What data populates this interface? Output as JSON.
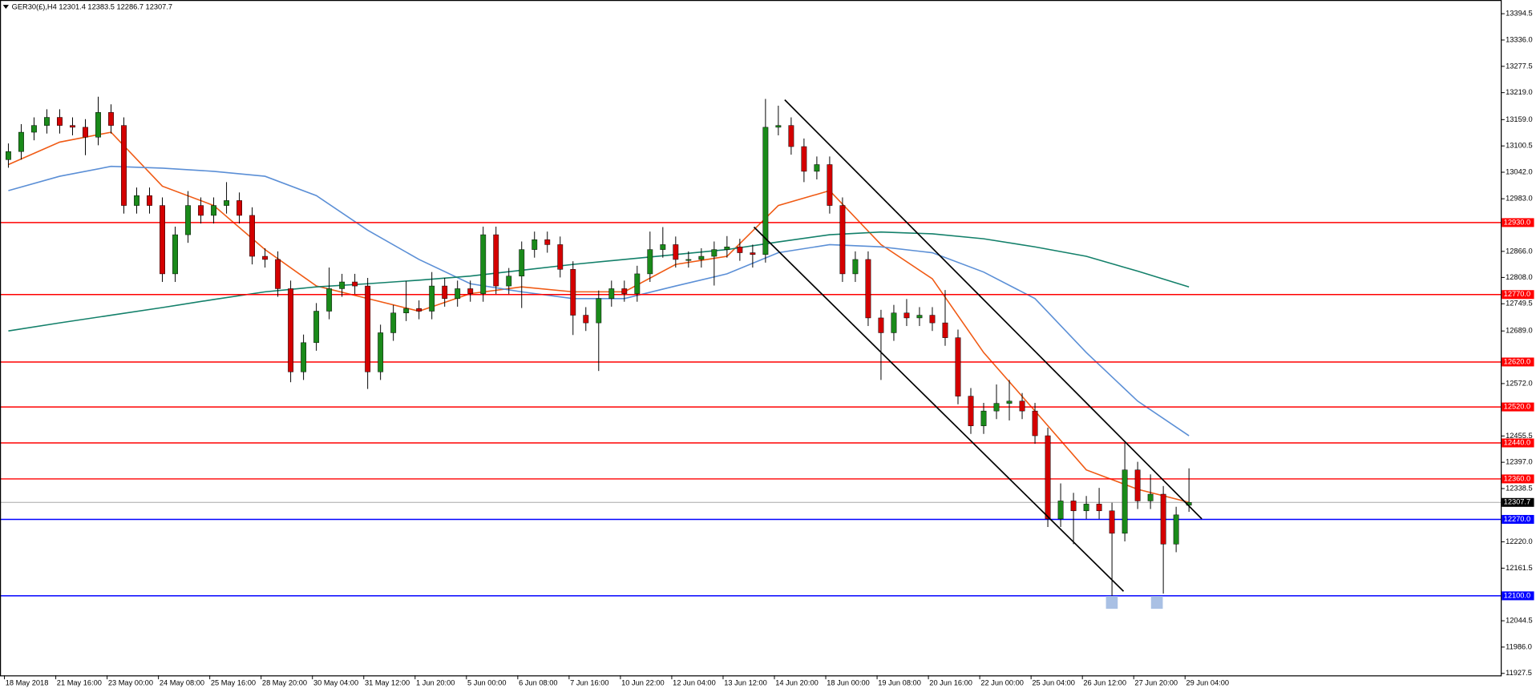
{
  "chart_data": {
    "type": "candlestick",
    "title": "GER30(£),H4  12301.4 12383.5 12286.7 12307.7",
    "categories": [
      "18 May 2018",
      null,
      null,
      null,
      "21 May 16:00",
      null,
      null,
      null,
      "23 May 00:00",
      null,
      null,
      null,
      "24 May 08:00",
      null,
      null,
      null,
      "25 May 16:00",
      null,
      null,
      null,
      "28 May 20:00",
      null,
      null,
      null,
      "30 May 04:00",
      null,
      null,
      null,
      "31 May 12:00",
      null,
      null,
      null,
      "1 Jun 20:00",
      null,
      null,
      null,
      "5 Jun 00:00",
      null,
      null,
      null,
      "6 Jun 08:00",
      null,
      null,
      null,
      "7 Jun 16:00",
      null,
      null,
      null,
      "10 Jun 22:00",
      null,
      null,
      null,
      "12 Jun 04:00",
      null,
      null,
      null,
      "13 Jun 12:00",
      null,
      null,
      null,
      "14 Jun 20:00",
      null,
      null,
      null,
      "18 Jun 00:00",
      null,
      null,
      null,
      "19 Jun 08:00",
      null,
      null,
      null,
      "20 Jun 16:00",
      null,
      null,
      null,
      "22 Jun 00:00",
      null,
      null,
      null,
      "25 Jun 04:00",
      null,
      null,
      null,
      "26 Jun 12:00",
      null,
      null,
      null,
      "27 Jun 20:00",
      null,
      null,
      null,
      "29 Jun 04:00"
    ],
    "open": [
      13070,
      13088,
      13131,
      13146,
      13164,
      13146,
      13142,
      13120,
      13175,
      13146,
      12968,
      12990,
      12968,
      12816,
      12903,
      12968,
      12946,
      12968,
      12979,
      12946,
      12855,
      12848,
      12783,
      12598,
      12663,
      12733,
      12783,
      12798,
      12789,
      12598,
      12685,
      12729,
      12739,
      12733,
      12789,
      12761,
      12783,
      12772,
      12903,
      12789,
      12811,
      12870,
      12892,
      12881,
      12826,
      12724,
      12707,
      12761,
      12783,
      12772,
      12816,
      12870,
      12881,
      12848,
      12848,
      12855,
      12870,
      12876,
      12863,
      12859,
      13142,
      13146,
      13099,
      13044,
      13059,
      12968,
      12816,
      12848,
      12718,
      12685,
      12729,
      12718,
      12724,
      12707,
      12674,
      12544,
      12478,
      12511,
      12528,
      12533,
      12511,
      12456,
      12271,
      12311,
      12289,
      12304,
      12289,
      12239,
      12380,
      12311,
      12326,
      12215,
      12301.4
    ],
    "high": [
      13106,
      13149,
      13164,
      13182,
      13182,
      13164,
      13160,
      13210,
      13193,
      13164,
      13008,
      13008,
      12986,
      12921,
      13000,
      12986,
      12986,
      13020,
      12997,
      12964,
      12873,
      12866,
      12801,
      12681,
      12751,
      12830,
      12816,
      12816,
      12807,
      12703,
      12747,
      12800,
      12757,
      12820,
      12807,
      12801,
      12801,
      12921,
      12921,
      12829,
      12888,
      12910,
      12910,
      12899,
      12844,
      12742,
      12779,
      12801,
      12801,
      12834,
      12910,
      12920,
      12899,
      12866,
      12873,
      12888,
      12900,
      12894,
      12881,
      13205,
      13190,
      13164,
      13117,
      13077,
      13077,
      12986,
      12866,
      12866,
      12736,
      12747,
      12760,
      12742,
      12742,
      12780,
      12692,
      12562,
      12529,
      12570,
      12580,
      12551,
      12529,
      12474,
      12350,
      12329,
      12322,
      12340,
      12307,
      12440,
      12398,
      12370,
      12344,
      12298,
      12383.5
    ],
    "low": [
      13052,
      13070,
      13113,
      13128,
      13128,
      13124,
      13080,
      13102,
      13128,
      12950,
      12950,
      12950,
      12798,
      12798,
      12885,
      12928,
      12928,
      12950,
      12928,
      12837,
      12830,
      12765,
      12575,
      12580,
      12645,
      12715,
      12765,
      12771,
      12560,
      12580,
      12667,
      12711,
      12715,
      12715,
      12743,
      12743,
      12754,
      12754,
      12771,
      12771,
      12740,
      12852,
      12863,
      12808,
      12680,
      12689,
      12600,
      12743,
      12754,
      12754,
      12798,
      12852,
      12830,
      12830,
      12830,
      12790,
      12852,
      12845,
      12830,
      12841,
      13124,
      13081,
      13020,
      13026,
      12950,
      12798,
      12798,
      12700,
      12580,
      12667,
      12700,
      12700,
      12689,
      12656,
      12526,
      12460,
      12460,
      12493,
      12490,
      12493,
      12438,
      12253,
      12253,
      12215,
      12271,
      12271,
      12100,
      12221,
      12293,
      12293,
      12105,
      12197,
      12286.7
    ],
    "close": [
      13088,
      13131,
      13146,
      13164,
      13146,
      13142,
      13120,
      13175,
      13146,
      12968,
      12990,
      12968,
      12816,
      12903,
      12968,
      12946,
      12968,
      12979,
      12946,
      12855,
      12848,
      12783,
      12598,
      12663,
      12733,
      12783,
      12798,
      12789,
      12598,
      12685,
      12729,
      12739,
      12733,
      12789,
      12761,
      12783,
      12772,
      12903,
      12789,
      12811,
      12870,
      12892,
      12881,
      12826,
      12724,
      12707,
      12761,
      12783,
      12772,
      12816,
      12870,
      12881,
      12848,
      12848,
      12855,
      12870,
      12876,
      12863,
      12859,
      13142,
      13146,
      13099,
      13044,
      13059,
      12968,
      12816,
      12848,
      12718,
      12685,
      12729,
      12718,
      12724,
      12707,
      12674,
      12544,
      12478,
      12511,
      12528,
      12533,
      12511,
      12456,
      12271,
      12311,
      12289,
      12304,
      12289,
      12239,
      12380,
      12311,
      12326,
      12215,
      12280,
      12307.7
    ],
    "up_color": "#1a8a1a",
    "down_color": "#d40000",
    "moving_averages": [
      {
        "color": "#f05a14",
        "x": [
          0,
          4,
          8,
          12,
          16,
          20,
          24,
          28,
          32,
          36,
          40,
          44,
          48,
          52,
          56,
          60,
          64,
          68,
          72,
          76,
          80,
          84,
          88,
          92
        ],
        "values": [
          13059,
          13109,
          13131,
          13011,
          12968,
          12870,
          12789,
          12761,
          12733,
          12772,
          12787,
          12776,
          12776,
          12837,
          12855,
          12968,
          13001,
          12881,
          12805,
          12641,
          12511,
          12380,
          12337,
          12308
        ]
      },
      {
        "color": "#5b8fd6",
        "x": [
          0,
          4,
          8,
          12,
          16,
          20,
          24,
          28,
          32,
          36,
          40,
          44,
          48,
          52,
          56,
          60,
          64,
          68,
          72,
          76,
          80,
          84,
          88,
          92
        ],
        "values": [
          13001,
          13033,
          13055,
          13051,
          13044,
          13033,
          12990,
          12913,
          12848,
          12794,
          12776,
          12761,
          12761,
          12789,
          12816,
          12863,
          12881,
          12876,
          12863,
          12820,
          12761,
          12641,
          12533,
          12456
        ]
      },
      {
        "color": "#13806a",
        "x": [
          0,
          4,
          8,
          12,
          16,
          20,
          24,
          28,
          32,
          36,
          40,
          44,
          48,
          52,
          56,
          60,
          64,
          68,
          72,
          76,
          80,
          84,
          88,
          92
        ],
        "values": [
          12689,
          12707,
          12724,
          12741,
          12759,
          12776,
          12787,
          12794,
          12802,
          12811,
          12824,
          12837,
          12848,
          12859,
          12870,
          12887,
          12903,
          12909,
          12905,
          12894,
          12876,
          12855,
          12822,
          12787
        ]
      }
    ],
    "levels": [
      {
        "value": 12930,
        "label": "12930.0",
        "color": "#ff0000"
      },
      {
        "value": 12770,
        "label": "12770.0",
        "color": "#ff0000"
      },
      {
        "value": 12620,
        "label": "12620.0",
        "color": "#ff0000"
      },
      {
        "value": 12520,
        "label": "12520.0",
        "color": "#ff0000"
      },
      {
        "value": 12440,
        "label": "12440.0",
        "color": "#ff0000"
      },
      {
        "value": 12360,
        "label": "12360.0",
        "color": "#ff0000"
      },
      {
        "value": 12270,
        "label": "12270.0",
        "color": "#0000ff"
      },
      {
        "value": 12100,
        "label": "12100.0",
        "color": "#0000ff"
      }
    ],
    "current_price": 12307.7,
    "trendlines": [
      {
        "x": [
          60.5,
          93
        ],
        "y": [
          13203,
          12271
        ]
      },
      {
        "x": [
          58.1,
          86.9
        ],
        "y": [
          12920,
          12110
        ]
      }
    ],
    "ylim": [
      11923.1,
      13425.0
    ],
    "yticks": [
      13394.5,
      {
        "value": 13336,
        "label": "13336.0"
      },
      13277.5,
      {
        "value": 13219,
        "label": "13219.0"
      },
      {
        "value": 13159,
        "label": "13159.0"
      },
      13100.5,
      {
        "value": 13042,
        "label": "13042.0"
      },
      {
        "value": 12983,
        "label": "12983.0"
      },
      {
        "value": 12866,
        "label": "12866.0"
      },
      {
        "value": 12808,
        "label": "12808.0"
      },
      12749.5,
      {
        "value": 12689,
        "label": "12689.0"
      },
      {
        "value": 12572,
        "label": "12572.0"
      },
      12455.5,
      {
        "value": 12397,
        "label": "12397.0"
      },
      12338.5,
      {
        "value": 12220,
        "label": "12220.0"
      },
      12161.5,
      12044.5,
      {
        "value": 11986,
        "label": "11986.0"
      },
      11927.5
    ]
  }
}
